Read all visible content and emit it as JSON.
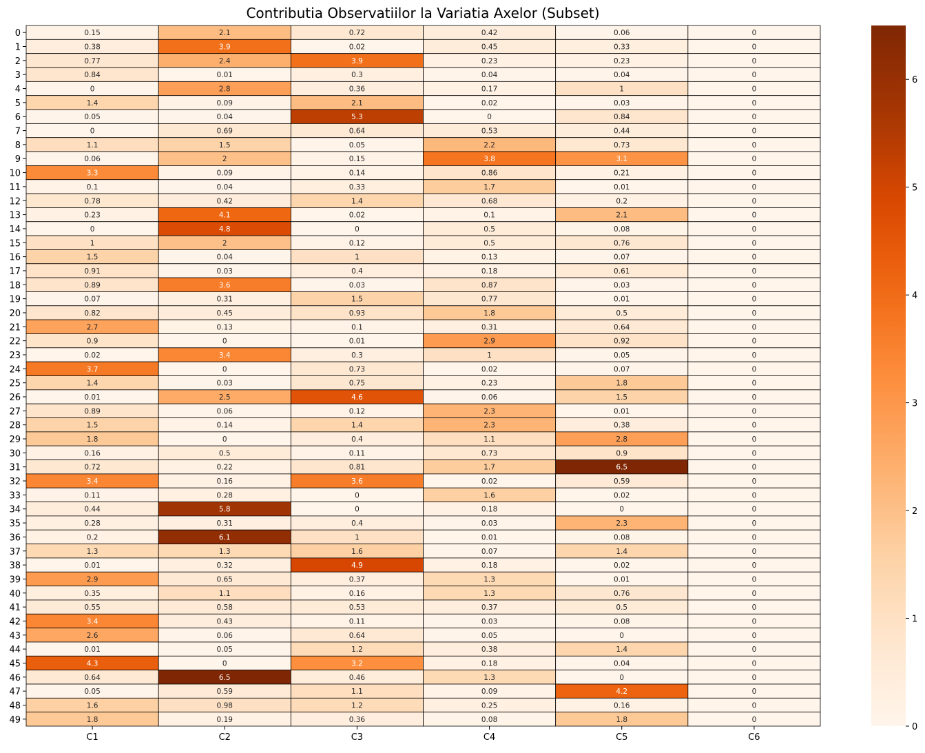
{
  "chart_data": {
    "type": "heatmap",
    "title": "Contributia Observatiilor la Variatia Axelor (Subset)",
    "xlabel": "",
    "ylabel": "",
    "columns": [
      "C1",
      "C2",
      "C3",
      "C4",
      "C5",
      "C6"
    ],
    "rows": [
      "0",
      "1",
      "2",
      "3",
      "4",
      "5",
      "6",
      "7",
      "8",
      "9",
      "10",
      "11",
      "12",
      "13",
      "14",
      "15",
      "16",
      "17",
      "18",
      "19",
      "20",
      "21",
      "22",
      "23",
      "24",
      "25",
      "26",
      "27",
      "28",
      "29",
      "30",
      "31",
      "32",
      "33",
      "34",
      "35",
      "36",
      "37",
      "38",
      "39",
      "40",
      "41",
      "42",
      "43",
      "44",
      "45",
      "46",
      "47",
      "48",
      "49"
    ],
    "values": [
      [
        0.15,
        2.1,
        0.72,
        0.42,
        0.06,
        0
      ],
      [
        0.38,
        3.9,
        0.02,
        0.45,
        0.33,
        0
      ],
      [
        0.77,
        2.4,
        3.9,
        0.23,
        0.23,
        0
      ],
      [
        0.84,
        0.01,
        0.3,
        0.04,
        0.04,
        0
      ],
      [
        0,
        2.8,
        0.36,
        0.17,
        1,
        0
      ],
      [
        1.4,
        0.09,
        2.1,
        0.02,
        0.03,
        0
      ],
      [
        0.05,
        0.04,
        5.3,
        0,
        0.84,
        0
      ],
      [
        0,
        0.69,
        0.64,
        0.53,
        0.44,
        0
      ],
      [
        1.1,
        1.5,
        0.05,
        2.2,
        0.73,
        0
      ],
      [
        0.06,
        2,
        0.15,
        3.8,
        3.1,
        0
      ],
      [
        3.3,
        0.09,
        0.14,
        0.86,
        0.21,
        0
      ],
      [
        0.1,
        0.04,
        0.33,
        1.7,
        0.01,
        0
      ],
      [
        0.78,
        0.42,
        1.4,
        0.68,
        0.2,
        0
      ],
      [
        0.23,
        4.1,
        0.02,
        0.1,
        2.1,
        0
      ],
      [
        0,
        4.8,
        0,
        0.5,
        0.08,
        0
      ],
      [
        1,
        2,
        0.12,
        0.5,
        0.76,
        0
      ],
      [
        1.5,
        0.04,
        1,
        0.13,
        0.07,
        0
      ],
      [
        0.91,
        0.03,
        0.4,
        0.18,
        0.61,
        0
      ],
      [
        0.89,
        3.6,
        0.03,
        0.87,
        0.03,
        0
      ],
      [
        0.07,
        0.31,
        1.5,
        0.77,
        0.01,
        0
      ],
      [
        0.82,
        0.45,
        0.93,
        1.8,
        0.5,
        0
      ],
      [
        2.7,
        0.13,
        0.1,
        0.31,
        0.64,
        0
      ],
      [
        0.9,
        0,
        0.01,
        2.9,
        0.92,
        0
      ],
      [
        0.02,
        3.4,
        0.3,
        1,
        0.05,
        0
      ],
      [
        3.7,
        0,
        0.73,
        0.02,
        0.07,
        0
      ],
      [
        1.4,
        0.03,
        0.75,
        0.23,
        1.8,
        0
      ],
      [
        0.01,
        2.5,
        4.6,
        0.06,
        1.5,
        0
      ],
      [
        0.89,
        0.06,
        0.12,
        2.3,
        0.01,
        0
      ],
      [
        1.5,
        0.14,
        1.4,
        2.3,
        0.38,
        0
      ],
      [
        1.8,
        0,
        0.4,
        1.1,
        2.8,
        0
      ],
      [
        0.16,
        0.5,
        0.11,
        0.73,
        0.9,
        0
      ],
      [
        0.72,
        0.22,
        0.81,
        1.7,
        6.5,
        0
      ],
      [
        3.4,
        0.16,
        3.6,
        0.02,
        0.59,
        0
      ],
      [
        0.11,
        0.28,
        0,
        1.6,
        0.02,
        0
      ],
      [
        0.44,
        5.8,
        0,
        0.18,
        0,
        0
      ],
      [
        0.28,
        0.31,
        0.4,
        0.03,
        2.3,
        0
      ],
      [
        0.2,
        6.1,
        1,
        0.01,
        0.08,
        0
      ],
      [
        1.3,
        1.3,
        1.6,
        0.07,
        1.4,
        0
      ],
      [
        0.01,
        0.32,
        4.9,
        0.18,
        0.02,
        0
      ],
      [
        2.9,
        0.65,
        0.37,
        1.3,
        0.01,
        0
      ],
      [
        0.35,
        1.1,
        0.16,
        1.3,
        0.76,
        0
      ],
      [
        0.55,
        0.58,
        0.53,
        0.37,
        0.5,
        0
      ],
      [
        3.4,
        0.43,
        0.11,
        0.03,
        0.08,
        0
      ],
      [
        2.6,
        0.06,
        0.64,
        0.05,
        0,
        0
      ],
      [
        0.01,
        0.05,
        1.2,
        0.38,
        1.4,
        0
      ],
      [
        4.3,
        0,
        3.2,
        0.18,
        0.04,
        0
      ],
      [
        0.64,
        6.5,
        0.46,
        1.3,
        0,
        0
      ],
      [
        0.05,
        0.59,
        1.1,
        0.09,
        4.2,
        0
      ],
      [
        1.6,
        0.98,
        1.2,
        0.25,
        0.16,
        0
      ],
      [
        1.8,
        0.19,
        0.36,
        0.08,
        1.8,
        0
      ]
    ],
    "colorscale": "Oranges",
    "vmin": 0,
    "vmax": 6.5,
    "colorbar_ticks": [
      0,
      1,
      2,
      3,
      4,
      5,
      6
    ],
    "cell_border_color": "#000000",
    "grid": false,
    "legend": "colorbar-right"
  }
}
